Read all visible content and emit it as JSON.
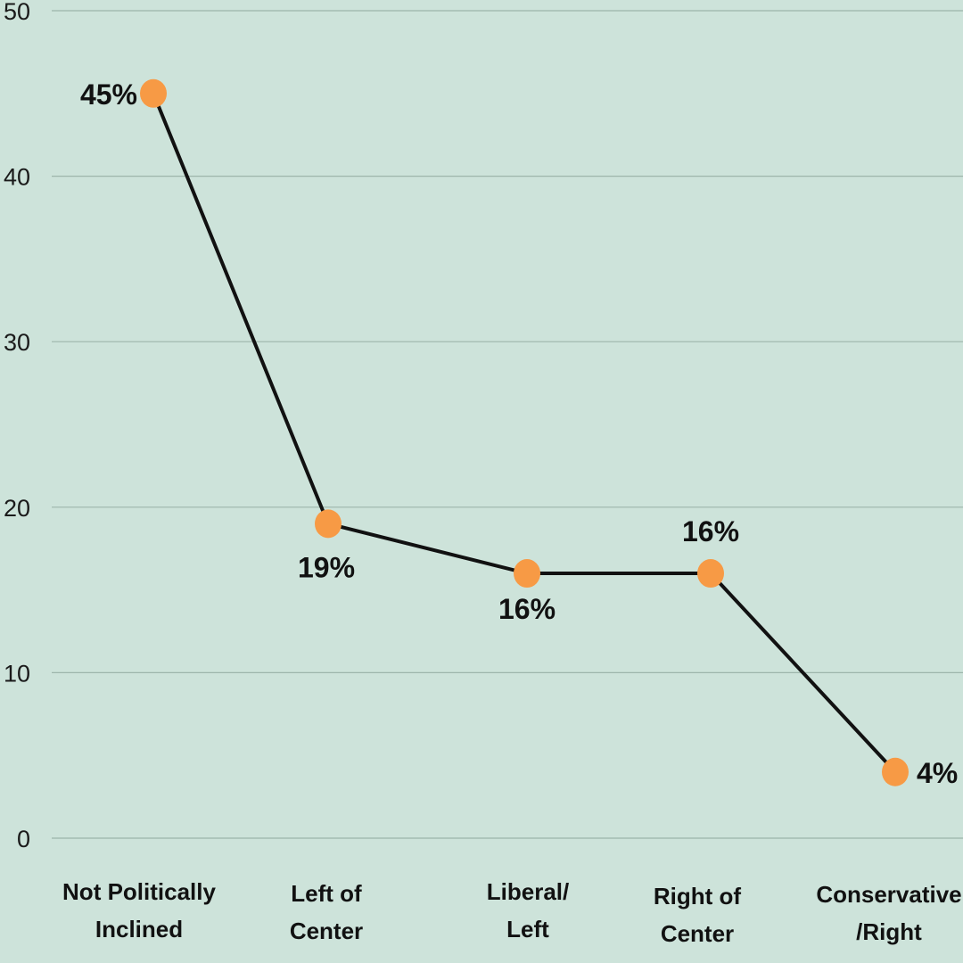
{
  "chart_data": {
    "type": "line",
    "categories": [
      [
        "Not Politically",
        "Inclined"
      ],
      [
        "Left of",
        "Center"
      ],
      [
        "Liberal/",
        "Left"
      ],
      [
        "Right of",
        "Center"
      ],
      [
        "Conservative",
        "/Right"
      ]
    ],
    "series": [
      {
        "values": [
          45,
          19,
          16,
          16,
          4
        ]
      }
    ],
    "data_labels": [
      "45%",
      "19%",
      "16%",
      "16%",
      "4%"
    ],
    "yticks": [
      0,
      10,
      20,
      30,
      40,
      50
    ],
    "ylim": [
      0,
      50
    ],
    "grid": true,
    "colors": {
      "background": "#cde3da",
      "line": "#111111",
      "marker": "#f79a45",
      "grid": "#9db5ab"
    }
  }
}
